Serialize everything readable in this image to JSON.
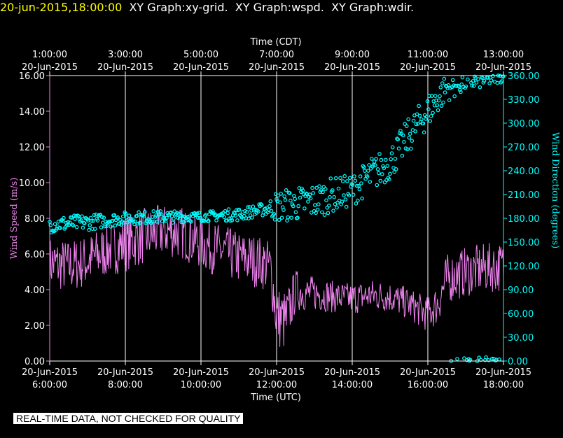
{
  "header": {
    "timestamp": "20-jun-2015,18:00:00",
    "graphs": "  XY Graph:xy-grid.  XY Graph:wspd.  XY Graph:wdir."
  },
  "footer": "REAL-TIME DATA, NOT CHECKED FOR QUALITY",
  "colors": {
    "speed": "#ee82ee",
    "direction": "#00ffff",
    "grid": "#ffffff",
    "header_ts": "#ffff00"
  },
  "chart_data": {
    "type": "scatter",
    "title": "",
    "x_top": {
      "title": "Time (CDT)",
      "ticks": [
        {
          "time": "1:00:00",
          "date": "20-Jun-2015"
        },
        {
          "time": "3:00:00",
          "date": "20-Jun-2015"
        },
        {
          "time": "5:00:00",
          "date": "20-Jun-2015"
        },
        {
          "time": "7:00:00",
          "date": "20-Jun-2015"
        },
        {
          "time": "9:00:00",
          "date": "20-Jun-2015"
        },
        {
          "time": "11:00:00",
          "date": "20-Jun-2015"
        },
        {
          "time": "13:00:00",
          "date": "20-Jun-2015"
        }
      ]
    },
    "x_bottom": {
      "title": "Time (UTC)",
      "range": [
        "2015-06-20 06:00",
        "2015-06-20 18:00"
      ],
      "ticks": [
        {
          "time": "6:00:00",
          "date": "20-Jun-2015"
        },
        {
          "time": "8:00:00",
          "date": "20-Jun-2015"
        },
        {
          "time": "10:00:00",
          "date": "20-Jun-2015"
        },
        {
          "time": "12:00:00",
          "date": "20-Jun-2015"
        },
        {
          "time": "14:00:00",
          "date": "20-Jun-2015"
        },
        {
          "time": "16:00:00",
          "date": "20-Jun-2015"
        },
        {
          "time": "18:00:00",
          "date": "20-Jun-2015"
        }
      ]
    },
    "y_left": {
      "title": "Wind Speed (m/s)",
      "ylim": [
        0,
        16
      ],
      "ticks": [
        "0.00",
        "2.00",
        "4.00",
        "6.00",
        "8.00",
        "10.00",
        "12.00",
        "14.00",
        "16.00"
      ]
    },
    "y_right": {
      "title": "Wind Direction (degrees)",
      "ylim": [
        0,
        360
      ],
      "ticks": [
        "0.00",
        "30.00",
        "60.00",
        "90.00",
        "120.00",
        "150.00",
        "180.00",
        "210.00",
        "240.00",
        "270.00",
        "300.00",
        "330.00",
        "360.00"
      ]
    },
    "grid": "vertical",
    "series": [
      {
        "name": "Wind Speed",
        "style": "line",
        "axis": "left",
        "x": [
          "06:00",
          "06:30",
          "07:00",
          "07:30",
          "08:00",
          "08:30",
          "09:00",
          "09:30",
          "10:00",
          "10:30",
          "11:00",
          "11:30",
          "11:50",
          "12:00",
          "12:15",
          "12:30",
          "12:45",
          "13:00",
          "13:30",
          "14:00",
          "14:30",
          "15:00",
          "15:30",
          "16:00",
          "16:15",
          "16:30",
          "17:00",
          "17:30",
          "18:00"
        ],
        "y": [
          5.5,
          5.3,
          5.6,
          6.2,
          6.6,
          7.0,
          7.3,
          7.2,
          6.6,
          6.2,
          5.8,
          5.6,
          5.3,
          2.5,
          2.2,
          4.0,
          3.8,
          3.8,
          3.6,
          3.5,
          3.7,
          3.6,
          3.2,
          2.6,
          3.2,
          4.6,
          5.0,
          5.2,
          5.3
        ],
        "amplitude": [
          1.5,
          1.5,
          1.5,
          1.5,
          1.6,
          1.6,
          1.5,
          1.5,
          1.5,
          1.5,
          1.5,
          1.5,
          1.5,
          1.8,
          1.8,
          1.2,
          1.0,
          1.0,
          0.9,
          0.9,
          0.9,
          0.9,
          0.9,
          1.0,
          1.2,
          1.4,
          1.4,
          1.4,
          1.4
        ]
      },
      {
        "name": "Wind Direction",
        "style": "circles",
        "axis": "right",
        "x": [
          "06:00",
          "07:00",
          "08:00",
          "09:00",
          "10:00",
          "11:00",
          "11:45",
          "12:00",
          "12:30",
          "13:00",
          "13:30",
          "14:00",
          "14:30",
          "15:00",
          "15:30",
          "16:00",
          "16:30",
          "17:00",
          "17:30",
          "18:00"
        ],
        "y": [
          172,
          175,
          180,
          182,
          182,
          185,
          192,
          195,
          198,
          202,
          210,
          215,
          235,
          250,
          285,
          315,
          345,
          352,
          355,
          358
        ],
        "spread": [
          10,
          10,
          8,
          8,
          6,
          8,
          8,
          20,
          22,
          22,
          22,
          20,
          22,
          22,
          22,
          22,
          18,
          12,
          10,
          6
        ]
      }
    ]
  }
}
